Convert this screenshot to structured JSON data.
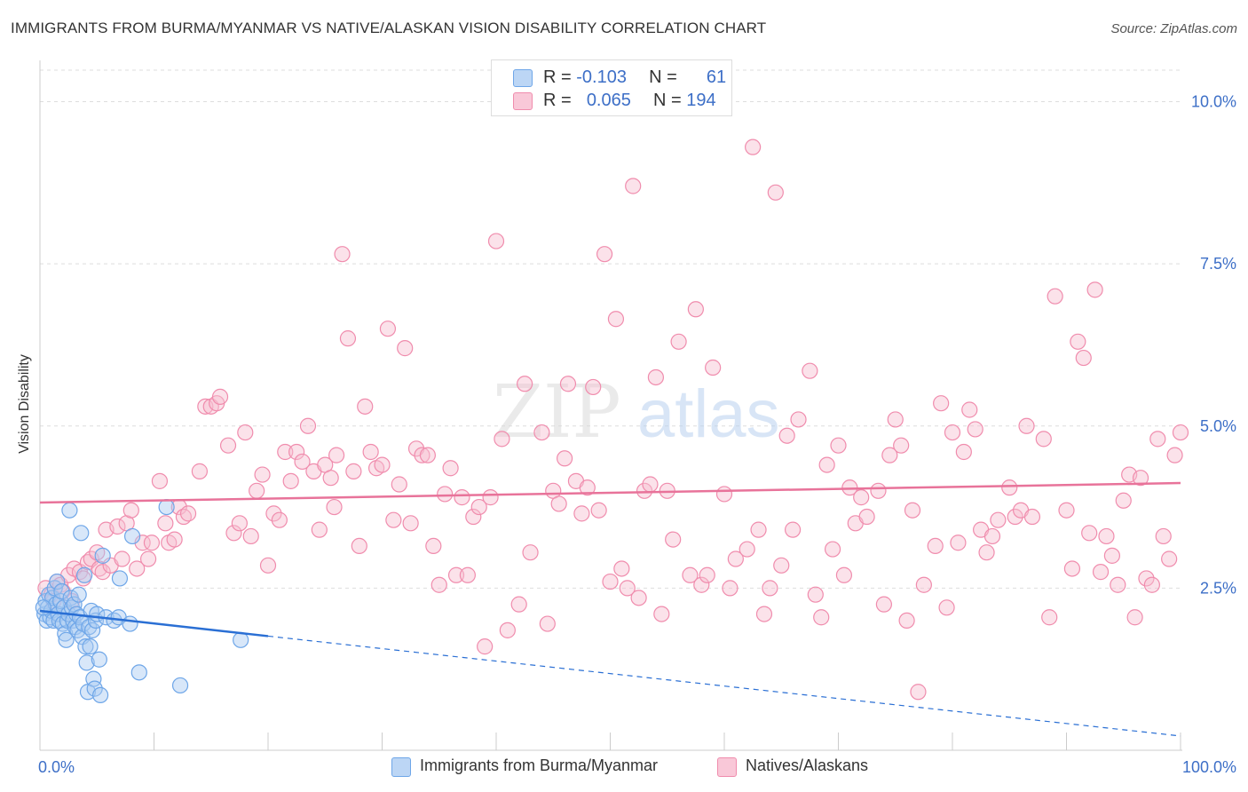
{
  "title": "IMMIGRANTS FROM BURMA/MYANMAR VS NATIVE/ALASKAN VISION DISABILITY CORRELATION CHART",
  "source": "Source: ZipAtlas.com",
  "watermark": {
    "zip": "ZIP",
    "atlas": "atlas"
  },
  "legend_top": {
    "rows": [
      {
        "r_label": "R =",
        "r_value": "-0.103",
        "n_label": "N =",
        "n_value": "61"
      },
      {
        "r_label": "R =",
        "r_value": "0.065",
        "n_label": "N =",
        "n_value": "194"
      }
    ]
  },
  "chart_data": {
    "type": "scatter",
    "title": "IMMIGRANTS FROM BURMA/MYANMAR VS NATIVE/ALASKAN VISION DISABILITY CORRELATION CHART",
    "xlabel": "",
    "ylabel": "Vision Disability",
    "xlim": [
      0,
      100
    ],
    "ylim": [
      0,
      10.5
    ],
    "x_tick_labels": [
      {
        "value": 0,
        "label": "0.0%"
      },
      {
        "value": 100,
        "label": "100.0%"
      }
    ],
    "y_tick_labels": [
      {
        "value": 2.5,
        "label": "2.5%"
      },
      {
        "value": 5.0,
        "label": "5.0%"
      },
      {
        "value": 7.5,
        "label": "7.5%"
      },
      {
        "value": 10.0,
        "label": "10.0%"
      }
    ],
    "grid": true,
    "legend_position": "bottom",
    "series": [
      {
        "name": "Immigrants from Burma/Myanmar",
        "color": "#6ea6e8",
        "fill": "#a9caf1",
        "line_color": "#2a6fd4",
        "trend": {
          "x0": 0,
          "y0": 2.15,
          "x1": 20,
          "y1": 1.76,
          "dashed_to_x": 100,
          "dashed_to_y": 0.22
        },
        "points": [
          [
            0.4,
            2.1
          ],
          [
            0.5,
            2.3
          ],
          [
            0.6,
            2.0
          ],
          [
            0.7,
            2.2
          ],
          [
            0.8,
            2.4
          ],
          [
            0.9,
            2.05
          ],
          [
            1.0,
            2.15
          ],
          [
            1.1,
            2.35
          ],
          [
            1.2,
            2.0
          ],
          [
            1.3,
            2.5
          ],
          [
            1.4,
            2.25
          ],
          [
            1.5,
            2.6
          ],
          [
            1.6,
            2.1
          ],
          [
            1.7,
            2.0
          ],
          [
            1.8,
            2.3
          ],
          [
            1.9,
            2.45
          ],
          [
            2.0,
            1.95
          ],
          [
            2.1,
            2.2
          ],
          [
            2.2,
            1.8
          ],
          [
            2.3,
            1.7
          ],
          [
            2.4,
            2.0
          ],
          [
            2.5,
            2.1
          ],
          [
            2.6,
            3.7
          ],
          [
            2.7,
            2.35
          ],
          [
            2.8,
            2.2
          ],
          [
            2.9,
            2.0
          ],
          [
            3.0,
            2.25
          ],
          [
            3.1,
            1.9
          ],
          [
            3.2,
            2.1
          ],
          [
            3.3,
            1.85
          ],
          [
            3.4,
            2.4
          ],
          [
            3.5,
            2.05
          ],
          [
            3.6,
            3.35
          ],
          [
            3.7,
            1.75
          ],
          [
            3.8,
            1.95
          ],
          [
            3.9,
            2.7
          ],
          [
            4.0,
            1.6
          ],
          [
            4.1,
            1.35
          ],
          [
            4.2,
            0.9
          ],
          [
            4.3,
            1.9
          ],
          [
            4.4,
            1.6
          ],
          [
            4.5,
            2.15
          ],
          [
            4.6,
            1.85
          ],
          [
            4.7,
            1.1
          ],
          [
            4.8,
            0.95
          ],
          [
            4.9,
            2.0
          ],
          [
            5.0,
            2.1
          ],
          [
            5.2,
            1.4
          ],
          [
            5.3,
            0.85
          ],
          [
            5.5,
            3.0
          ],
          [
            5.8,
            2.05
          ],
          [
            6.5,
            2.0
          ],
          [
            6.9,
            2.05
          ],
          [
            7.0,
            2.65
          ],
          [
            7.9,
            1.95
          ],
          [
            8.1,
            3.3
          ],
          [
            8.7,
            1.2
          ],
          [
            11.1,
            3.75
          ],
          [
            12.3,
            1.0
          ],
          [
            17.6,
            1.7
          ],
          [
            0.3,
            2.2
          ]
        ]
      },
      {
        "name": "Natives/Alaskans",
        "color": "#f08cad",
        "fill": "#f7bfd1",
        "line_color": "#e8739a",
        "trend": {
          "x0": 0,
          "y0": 3.82,
          "x1": 100,
          "y1": 4.12
        },
        "points": [
          [
            0.5,
            2.5
          ],
          [
            1.0,
            2.4
          ],
          [
            1.2,
            2.3
          ],
          [
            1.5,
            2.6
          ],
          [
            1.8,
            2.55
          ],
          [
            2.0,
            2.45
          ],
          [
            2.5,
            2.7
          ],
          [
            2.8,
            2.3
          ],
          [
            3.0,
            2.8
          ],
          [
            3.5,
            2.75
          ],
          [
            3.8,
            2.65
          ],
          [
            4.2,
            2.9
          ],
          [
            4.5,
            2.95
          ],
          [
            5.0,
            3.05
          ],
          [
            5.2,
            2.8
          ],
          [
            5.5,
            2.75
          ],
          [
            5.8,
            3.4
          ],
          [
            6.2,
            2.85
          ],
          [
            6.8,
            3.45
          ],
          [
            7.2,
            2.95
          ],
          [
            7.6,
            3.5
          ],
          [
            8.0,
            3.7
          ],
          [
            8.5,
            2.8
          ],
          [
            9.0,
            3.2
          ],
          [
            9.5,
            2.95
          ],
          [
            9.8,
            3.2
          ],
          [
            10.5,
            4.15
          ],
          [
            11.0,
            3.5
          ],
          [
            11.3,
            3.2
          ],
          [
            11.8,
            3.25
          ],
          [
            12.2,
            3.75
          ],
          [
            12.6,
            3.6
          ],
          [
            13.0,
            3.65
          ],
          [
            14.0,
            4.3
          ],
          [
            14.5,
            5.3
          ],
          [
            15.0,
            5.3
          ],
          [
            15.5,
            5.35
          ],
          [
            15.8,
            5.45
          ],
          [
            16.5,
            4.7
          ],
          [
            17.0,
            3.35
          ],
          [
            17.5,
            3.5
          ],
          [
            18.0,
            4.9
          ],
          [
            18.5,
            3.3
          ],
          [
            19.0,
            4.0
          ],
          [
            19.5,
            4.25
          ],
          [
            20.0,
            2.85
          ],
          [
            20.5,
            3.65
          ],
          [
            21.0,
            3.55
          ],
          [
            21.5,
            4.6
          ],
          [
            22.0,
            4.15
          ],
          [
            22.5,
            4.6
          ],
          [
            23.0,
            4.45
          ],
          [
            23.5,
            5.0
          ],
          [
            24.0,
            4.3
          ],
          [
            24.5,
            3.4
          ],
          [
            25.0,
            4.4
          ],
          [
            25.5,
            4.2
          ],
          [
            25.8,
            3.75
          ],
          [
            26.0,
            4.55
          ],
          [
            26.5,
            7.65
          ],
          [
            27.0,
            6.35
          ],
          [
            27.5,
            4.3
          ],
          [
            28.0,
            3.15
          ],
          [
            28.5,
            5.3
          ],
          [
            29.0,
            4.6
          ],
          [
            29.5,
            4.35
          ],
          [
            30.0,
            4.4
          ],
          [
            30.5,
            6.5
          ],
          [
            31.0,
            3.55
          ],
          [
            31.5,
            4.1
          ],
          [
            32.0,
            6.2
          ],
          [
            32.5,
            3.5
          ],
          [
            33.0,
            4.65
          ],
          [
            33.5,
            4.55
          ],
          [
            34.0,
            4.55
          ],
          [
            34.5,
            3.15
          ],
          [
            35.0,
            2.55
          ],
          [
            35.5,
            3.95
          ],
          [
            36.0,
            4.35
          ],
          [
            36.5,
            2.7
          ],
          [
            37.0,
            3.9
          ],
          [
            37.5,
            2.7
          ],
          [
            38.0,
            3.6
          ],
          [
            38.5,
            3.75
          ],
          [
            39.0,
            1.6
          ],
          [
            39.5,
            3.9
          ],
          [
            40.0,
            7.85
          ],
          [
            40.5,
            4.8
          ],
          [
            41.0,
            1.85
          ],
          [
            42.0,
            2.25
          ],
          [
            42.5,
            5.65
          ],
          [
            43.0,
            3.05
          ],
          [
            44.0,
            4.9
          ],
          [
            44.5,
            1.95
          ],
          [
            45.0,
            4.0
          ],
          [
            45.5,
            3.8
          ],
          [
            46.0,
            4.5
          ],
          [
            46.3,
            5.65
          ],
          [
            47.0,
            4.15
          ],
          [
            47.5,
            3.65
          ],
          [
            48.0,
            4.05
          ],
          [
            48.5,
            5.6
          ],
          [
            49.0,
            3.7
          ],
          [
            49.5,
            7.65
          ],
          [
            50.0,
            2.6
          ],
          [
            50.5,
            6.65
          ],
          [
            51.0,
            2.8
          ],
          [
            51.5,
            2.5
          ],
          [
            52.0,
            8.7
          ],
          [
            52.5,
            2.35
          ],
          [
            53.0,
            4.0
          ],
          [
            53.5,
            4.1
          ],
          [
            54.0,
            5.75
          ],
          [
            54.5,
            2.1
          ],
          [
            55.0,
            4.0
          ],
          [
            55.5,
            3.25
          ],
          [
            56.0,
            6.3
          ],
          [
            57.0,
            2.7
          ],
          [
            57.5,
            6.8
          ],
          [
            58.0,
            2.55
          ],
          [
            58.5,
            2.7
          ],
          [
            59.0,
            5.9
          ],
          [
            60.0,
            3.95
          ],
          [
            60.5,
            2.5
          ],
          [
            61.0,
            2.95
          ],
          [
            62.0,
            3.1
          ],
          [
            62.5,
            9.3
          ],
          [
            63.0,
            3.4
          ],
          [
            63.5,
            2.1
          ],
          [
            64.0,
            2.5
          ],
          [
            64.5,
            8.6
          ],
          [
            65.0,
            2.85
          ],
          [
            65.5,
            4.85
          ],
          [
            66.0,
            3.4
          ],
          [
            66.5,
            5.1
          ],
          [
            67.5,
            5.85
          ],
          [
            68.0,
            2.4
          ],
          [
            68.5,
            2.05
          ],
          [
            69.0,
            4.4
          ],
          [
            69.5,
            3.1
          ],
          [
            70.0,
            4.7
          ],
          [
            70.5,
            2.7
          ],
          [
            71.0,
            4.05
          ],
          [
            71.5,
            3.5
          ],
          [
            72.0,
            3.9
          ],
          [
            72.5,
            3.6
          ],
          [
            73.5,
            4.0
          ],
          [
            74.0,
            2.25
          ],
          [
            74.5,
            4.55
          ],
          [
            75.0,
            5.1
          ],
          [
            75.5,
            4.7
          ],
          [
            76.0,
            2.0
          ],
          [
            76.5,
            3.7
          ],
          [
            77.0,
            0.9
          ],
          [
            77.5,
            2.55
          ],
          [
            78.5,
            3.15
          ],
          [
            79.0,
            5.35
          ],
          [
            79.5,
            2.2
          ],
          [
            80.0,
            4.9
          ],
          [
            80.5,
            3.2
          ],
          [
            81.0,
            4.6
          ],
          [
            81.5,
            5.25
          ],
          [
            82.0,
            4.95
          ],
          [
            82.5,
            3.4
          ],
          [
            83.0,
            3.05
          ],
          [
            83.5,
            3.3
          ],
          [
            84.0,
            3.55
          ],
          [
            85.0,
            4.05
          ],
          [
            85.5,
            3.6
          ],
          [
            86.0,
            3.7
          ],
          [
            86.5,
            5.0
          ],
          [
            87.0,
            3.6
          ],
          [
            88.0,
            4.8
          ],
          [
            88.5,
            2.05
          ],
          [
            89.0,
            7.0
          ],
          [
            90.0,
            3.7
          ],
          [
            90.5,
            2.8
          ],
          [
            91.0,
            6.3
          ],
          [
            91.5,
            6.05
          ],
          [
            92.0,
            3.35
          ],
          [
            92.5,
            7.1
          ],
          [
            93.0,
            2.75
          ],
          [
            93.5,
            3.3
          ],
          [
            94.0,
            3.0
          ],
          [
            94.5,
            2.55
          ],
          [
            95.0,
            3.85
          ],
          [
            95.5,
            4.25
          ],
          [
            96.0,
            2.05
          ],
          [
            96.5,
            4.2
          ],
          [
            97.0,
            2.65
          ],
          [
            97.5,
            2.55
          ],
          [
            98.0,
            4.8
          ],
          [
            98.5,
            3.3
          ],
          [
            99.0,
            2.95
          ],
          [
            99.5,
            4.55
          ],
          [
            100.0,
            4.9
          ]
        ]
      }
    ]
  }
}
